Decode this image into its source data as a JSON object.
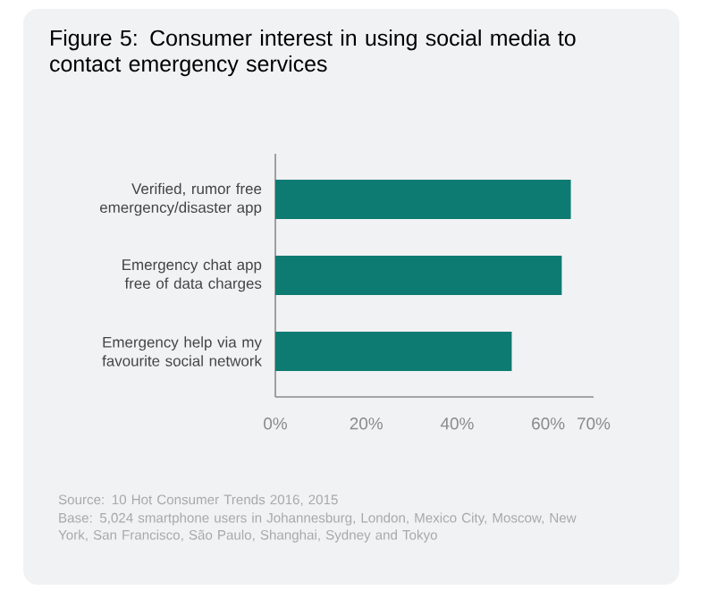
{
  "chart_data": {
    "type": "bar",
    "orientation": "horizontal",
    "title": "Figure 5: Consumer interest in using social media to contact emergency services",
    "categories": [
      "Verified, rumor free emergency/disaster app",
      "Emergency chat app free of data charges",
      "Emergency help via my favourite social network"
    ],
    "values": [
      65,
      63,
      52
    ],
    "color": "#0e7b72",
    "xlim": [
      0,
      70
    ],
    "xticks": [
      {
        "value": 0,
        "label": "0%"
      },
      {
        "value": 20,
        "label": "20%"
      },
      {
        "value": 40,
        "label": "40%"
      },
      {
        "value": 60,
        "label": "60%"
      },
      {
        "value": 70,
        "label": "70%"
      }
    ],
    "annotations": [
      "Source: 10 Hot Consumer Trends 2016, 2015",
      "Base: 5,024 smartphone users in Johannesburg, London, Mexico City, Moscow, New York, San Francisco, São Paulo, Shanghai, Sydney and Tokyo"
    ]
  }
}
